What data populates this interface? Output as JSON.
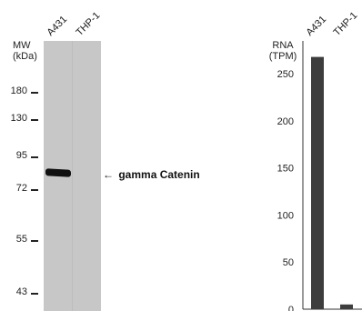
{
  "western_blot": {
    "mw_label_line1": "MW",
    "mw_label_line2": "(kDa)",
    "lanes": [
      "A431",
      "THP-1"
    ],
    "markers": [
      "180",
      "130",
      "95",
      "72",
      "55",
      "43"
    ],
    "annotation": "gamma Catenin",
    "annotation_arrow": "←"
  },
  "chart_data": {
    "type": "bar",
    "categories": [
      "A431",
      "THP-1"
    ],
    "values": [
      268,
      5
    ],
    "ylabel_line1": "RNA",
    "ylabel_line2": "(TPM)",
    "yticks": [
      "250",
      "200",
      "150",
      "100",
      "50",
      "0"
    ],
    "ylim": [
      0,
      285
    ],
    "title": "",
    "xlabel": "",
    "bar_color": "#3d3d3d"
  }
}
